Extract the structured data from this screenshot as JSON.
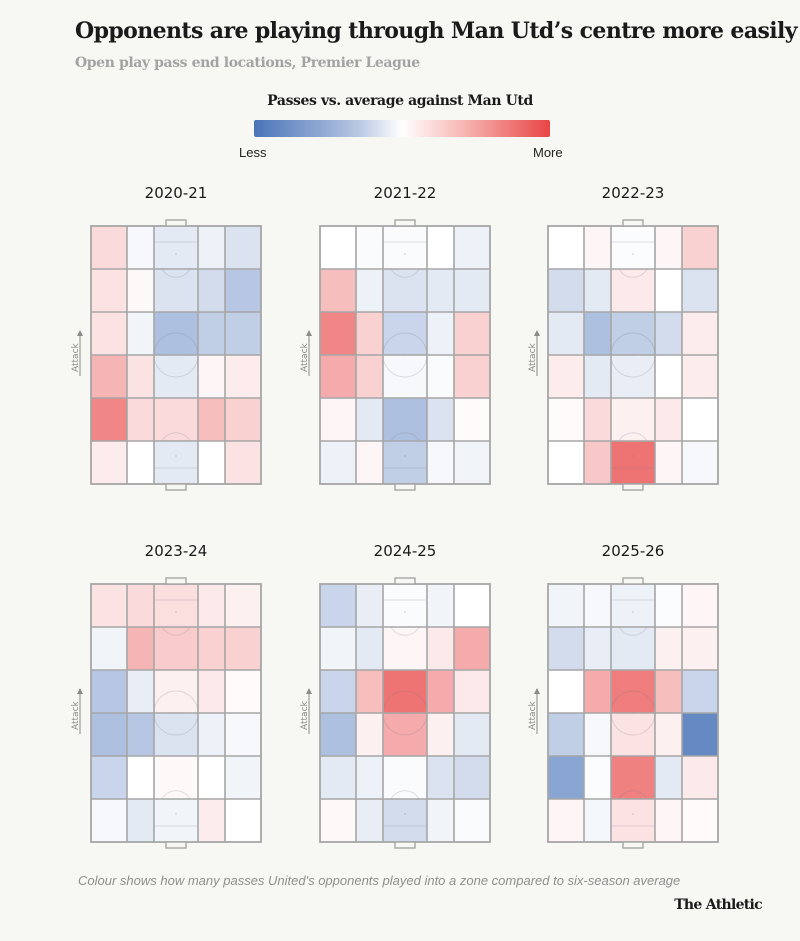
{
  "header": {
    "title": "Opponents are playing through Man Utd’s centre more easily",
    "subtitle": "Open play pass end locations, Premier League"
  },
  "legend": {
    "title": "Passes vs. average against Man Utd",
    "low_label": "Less",
    "high_label": "More",
    "low_color": "#4a74b8",
    "mid_color": "#ffffff",
    "high_color": "#e84545"
  },
  "footer": {
    "note": "Colour shows how many passes United's opponents played into a zone compared to six-season average",
    "brand": "The Athletic"
  },
  "chart_data": {
    "type": "heatmap",
    "title": "Opponents are playing through Man Utd’s centre more easily",
    "subtitle": "Open play pass end locations, Premier League",
    "value_description": "Relative passes into zone vs six-season average (-1 = much less, 0 = average, +1 = much more)",
    "direction_label": "Attack",
    "grid": {
      "rows": 6,
      "cols": 5,
      "row_order": "attacking end first (top)"
    },
    "color_scale": {
      "min": -1,
      "mid": 0,
      "max": 1,
      "min_label": "Less",
      "max_label": "More"
    },
    "panels": [
      {
        "season": "2020-21",
        "values": [
          [
            0.2,
            -0.05,
            -0.15,
            -0.1,
            -0.2
          ],
          [
            0.15,
            0.03,
            -0.2,
            -0.25,
            -0.4
          ],
          [
            0.15,
            -0.08,
            -0.45,
            -0.35,
            -0.35
          ],
          [
            0.4,
            0.15,
            -0.15,
            0.05,
            0.1
          ],
          [
            0.65,
            0.2,
            0.2,
            0.35,
            0.25
          ],
          [
            0.1,
            0.0,
            -0.15,
            0.0,
            0.15
          ]
        ]
      },
      {
        "season": "2021-22",
        "values": [
          [
            0.0,
            -0.03,
            -0.03,
            0.0,
            -0.1
          ],
          [
            0.35,
            -0.1,
            -0.2,
            -0.15,
            -0.15
          ],
          [
            0.65,
            0.25,
            -0.3,
            -0.1,
            0.25
          ],
          [
            0.45,
            0.25,
            -0.05,
            -0.03,
            0.25
          ],
          [
            0.05,
            -0.15,
            -0.45,
            -0.2,
            0.02
          ],
          [
            -0.1,
            0.05,
            -0.35,
            -0.05,
            -0.08
          ]
        ]
      },
      {
        "season": "2022-23",
        "values": [
          [
            0.0,
            0.05,
            -0.02,
            0.05,
            0.25
          ],
          [
            -0.25,
            -0.15,
            0.12,
            0.0,
            -0.2
          ],
          [
            -0.15,
            -0.45,
            -0.35,
            -0.25,
            0.1
          ],
          [
            0.1,
            -0.15,
            -0.12,
            0.0,
            0.1
          ],
          [
            0.02,
            0.2,
            0.08,
            0.12,
            0.0
          ],
          [
            0.0,
            0.3,
            0.75,
            0.05,
            -0.05
          ]
        ]
      },
      {
        "season": "2023-24",
        "values": [
          [
            0.15,
            0.2,
            0.18,
            0.12,
            0.08
          ],
          [
            -0.08,
            0.4,
            0.28,
            0.25,
            0.25
          ],
          [
            -0.4,
            -0.12,
            0.08,
            0.12,
            0.02
          ],
          [
            -0.45,
            -0.4,
            -0.2,
            -0.1,
            -0.05
          ],
          [
            -0.3,
            0.0,
            0.03,
            0.0,
            -0.08
          ],
          [
            -0.05,
            -0.15,
            -0.08,
            0.1,
            0.0
          ]
        ]
      },
      {
        "season": "2024-25",
        "values": [
          [
            -0.3,
            -0.12,
            -0.03,
            -0.08,
            0.0
          ],
          [
            -0.08,
            -0.15,
            0.05,
            0.12,
            0.45
          ],
          [
            -0.3,
            0.35,
            0.75,
            0.45,
            0.12
          ],
          [
            -0.45,
            0.08,
            0.45,
            0.08,
            -0.15
          ],
          [
            -0.15,
            -0.1,
            -0.03,
            -0.2,
            -0.25
          ],
          [
            0.03,
            -0.12,
            -0.25,
            -0.08,
            -0.03
          ]
        ]
      },
      {
        "season": "2025-26",
        "values": [
          [
            -0.08,
            -0.05,
            -0.1,
            -0.02,
            0.05
          ],
          [
            -0.25,
            -0.12,
            -0.15,
            0.08,
            0.08
          ],
          [
            0.0,
            0.45,
            0.7,
            0.35,
            -0.3
          ],
          [
            -0.35,
            -0.05,
            0.15,
            0.08,
            -0.85
          ],
          [
            -0.65,
            -0.02,
            0.68,
            -0.15,
            0.12
          ],
          [
            0.05,
            -0.06,
            0.15,
            0.05,
            0.02
          ]
        ]
      }
    ]
  }
}
